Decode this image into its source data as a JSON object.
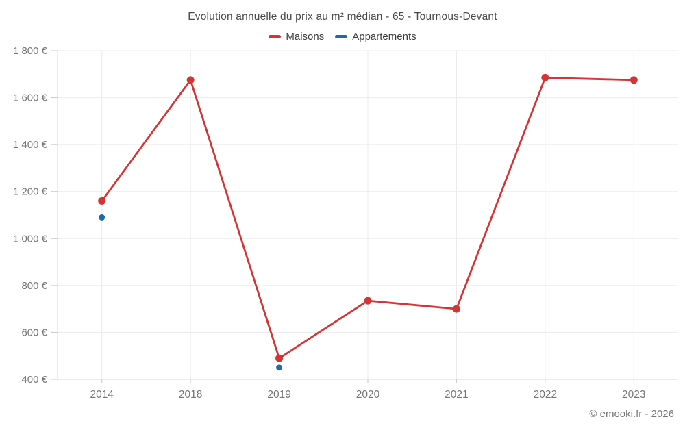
{
  "footer": "© emooki.fr - 2026",
  "colors": {
    "background": "#ffffff",
    "grid": "#ebebeb",
    "axis": "#d9d9d9",
    "tick": "#c9c9c9",
    "axis_label": "#757575",
    "title_text": "#4a4a4a",
    "legend_text": "#3d3d3d",
    "maisons": "#d43434",
    "appartements": "#1a6da8"
  },
  "chart_data": {
    "type": "line",
    "title": "Evolution annuelle du prix au m² médian - 65 - Tournous-Devant",
    "categories": [
      "2014",
      "2018",
      "2019",
      "2020",
      "2021",
      "2022",
      "2023"
    ],
    "series": [
      {
        "name": "Maisons",
        "color": "#d43434",
        "values": [
          1160,
          1675,
          490,
          735,
          700,
          1685,
          1675
        ],
        "draw_line": true,
        "line_width": 2.8,
        "point_radius": 5.5
      },
      {
        "name": "Appartements",
        "color": "#1a6da8",
        "values": [
          1090,
          null,
          450,
          null,
          null,
          null,
          null
        ],
        "draw_line": false,
        "line_width": 2.8,
        "point_radius": 4.5
      }
    ],
    "xlabel": "",
    "ylabel": "",
    "ylim": [
      400,
      1800
    ],
    "ytick_step": 200,
    "ytick_labels": [
      "400 €",
      "600 €",
      "800 €",
      "1 000 €",
      "1 200 €",
      "1 400 €",
      "1 600 €",
      "1 800 €"
    ],
    "grid": true,
    "legend_position": "top"
  }
}
